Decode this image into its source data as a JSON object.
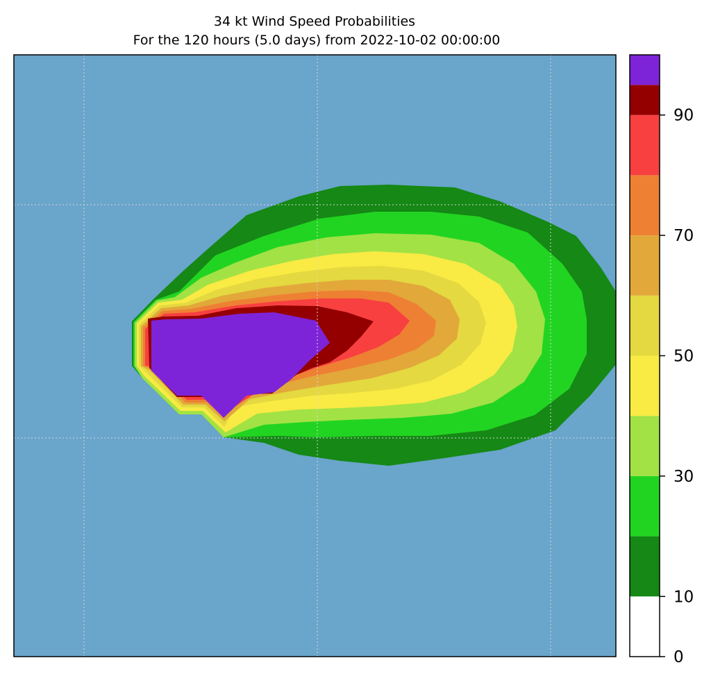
{
  "title": {
    "line1": "34 kt Wind Speed Probabilities",
    "line2": "For the 120 hours (5.0 days) from 2022-10-02 00:00:00"
  },
  "map": {
    "ocean_color": "#6aa5cb",
    "gridline_color": "#d8d8d8",
    "gridlines": true,
    "gridline_style": "dotted"
  },
  "colorbar": {
    "min": 0,
    "max": 100,
    "step": 10,
    "tick_values": [
      0,
      10,
      30,
      50,
      70,
      90
    ],
    "tick_labels": [
      "0",
      "10",
      "30",
      "50",
      "70",
      "90"
    ],
    "bands": [
      {
        "from": 0,
        "to": 10,
        "color": "#ffffff"
      },
      {
        "from": 10,
        "to": 20,
        "color": "#158815"
      },
      {
        "from": 20,
        "to": 30,
        "color": "#22d422"
      },
      {
        "from": 30,
        "to": 40,
        "color": "#a2e244"
      },
      {
        "from": 40,
        "to": 50,
        "color": "#f9ea44"
      },
      {
        "from": 50,
        "to": 60,
        "color": "#e4d940"
      },
      {
        "from": 60,
        "to": 70,
        "color": "#e2a83a"
      },
      {
        "from": 70,
        "to": 80,
        "color": "#ee8033"
      },
      {
        "from": 80,
        "to": 90,
        "color": "#f84040"
      },
      {
        "from": 90,
        "to": 95,
        "color": "#940000"
      },
      {
        "from": 95,
        "to": 100,
        "color": "#7e24d8"
      }
    ]
  }
}
